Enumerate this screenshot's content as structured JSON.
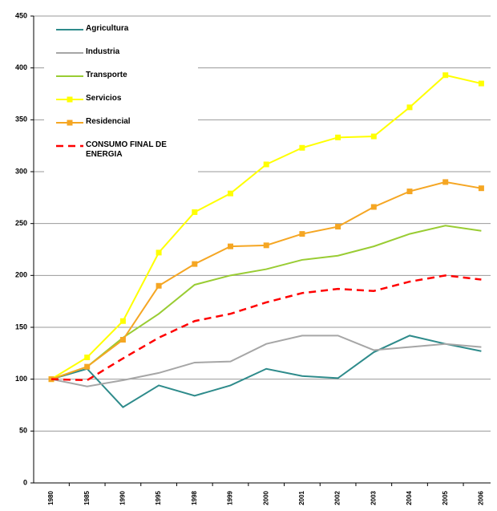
{
  "chart_data": {
    "type": "line",
    "categories": [
      "1980",
      "1985",
      "1990",
      "1995",
      "1998",
      "1999",
      "2000",
      "2001",
      "2002",
      "2003",
      "2004",
      "2005",
      "2006"
    ],
    "series": [
      {
        "name": "Agricultura",
        "color": "#2e8b8b",
        "values": [
          100,
          110,
          73,
          94,
          84,
          94,
          110,
          103,
          101,
          126,
          142,
          134,
          127
        ]
      },
      {
        "name": "Industria",
        "color": "#a6a6a6",
        "values": [
          100,
          93,
          99,
          106,
          116,
          117,
          134,
          142,
          142,
          128,
          131,
          134,
          131
        ]
      },
      {
        "name": "Transporte",
        "color": "#99cc33",
        "values": [
          100,
          112,
          140,
          163,
          191,
          200,
          206,
          215,
          219,
          228,
          240,
          248,
          243
        ]
      },
      {
        "name": "Servicios",
        "color": "#ffff00",
        "marker": "square",
        "values": [
          100,
          121,
          156,
          222,
          261,
          279,
          307,
          323,
          333,
          334,
          362,
          393,
          385
        ]
      },
      {
        "name": "Residencial",
        "color": "#f5a623",
        "marker": "square",
        "values": [
          100,
          112,
          138,
          190,
          211,
          228,
          229,
          240,
          247,
          266,
          281,
          290,
          284
        ]
      },
      {
        "name": "CONSUMO FINAL DE ENERGIA",
        "color": "#ff0000",
        "dashed": true,
        "values": [
          100,
          99,
          120,
          140,
          156,
          163,
          174,
          183,
          187,
          185,
          194,
          200,
          196
        ]
      }
    ],
    "ylim": [
      0,
      450
    ],
    "yticks": [
      0,
      50,
      100,
      150,
      200,
      250,
      300,
      350,
      400,
      450
    ],
    "grid": true,
    "legend": "upper left"
  }
}
